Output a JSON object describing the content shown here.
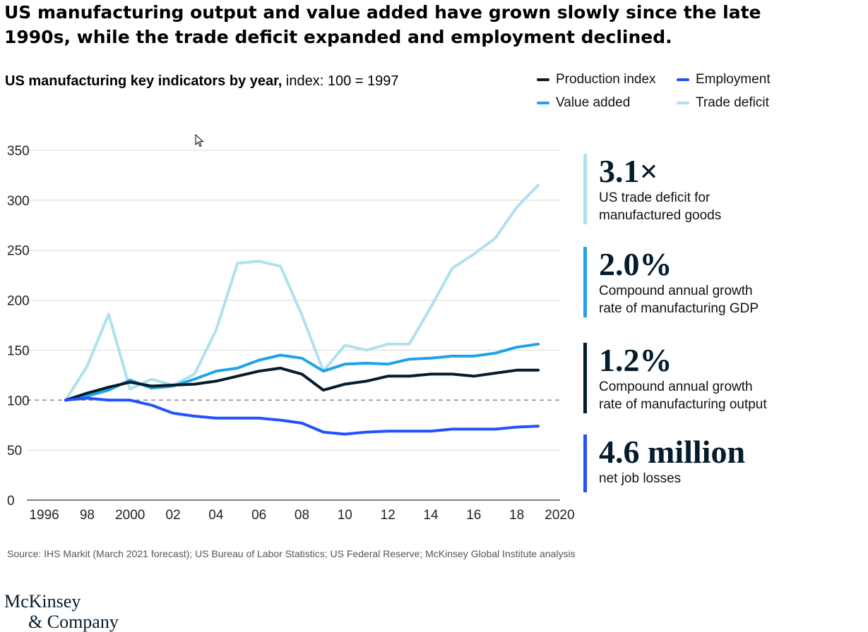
{
  "headline": "US manufacturing output and value added have grown slowly since the late 1990s, while the trade deficit expanded and employment declined.",
  "subtitle": {
    "bold": "US manufacturing key indicators by year,",
    "normal": " index: 100 = 1997"
  },
  "source": "Source: IHS Markit (March 2021 forecast); US Bureau of Labor Statistics; US Federal Reserve; McKinsey Global Institute analysis",
  "logo": {
    "line1": "McKinsey",
    "line2": "& Company"
  },
  "stats": [
    {
      "value": "3.1×",
      "line1": "US trade deficit for",
      "line2": "manufactured goods",
      "color": "#aee2ec"
    },
    {
      "value": "2.0%",
      "line1": "Compound annual growth",
      "line2": "rate of manufacturing GDP",
      "color": "#1fa3e8"
    },
    {
      "value": "1.2%",
      "line1": "Compound annual growth",
      "line2": "rate of manufacturing output",
      "color": "#051c2c"
    },
    {
      "value": "4.6 million",
      "line1": "net job losses",
      "line2": "",
      "color": "#2251ff"
    }
  ],
  "chart_data": {
    "type": "line",
    "ylim": [
      0,
      350
    ],
    "xlim": [
      1996,
      2020
    ],
    "yticks": [
      0,
      50,
      100,
      150,
      200,
      250,
      300,
      350
    ],
    "xtick_values": [
      1996,
      1998,
      2000,
      2002,
      2004,
      2006,
      2008,
      2010,
      2012,
      2014,
      2016,
      2018,
      2020
    ],
    "xtick_labels": [
      "1996",
      "98",
      "2000",
      "02",
      "04",
      "06",
      "08",
      "10",
      "12",
      "14",
      "16",
      "18",
      "2020"
    ],
    "reference_line": 100,
    "grid": true,
    "legend_position": "top-right",
    "x": [
      1997,
      1998,
      1999,
      2000,
      2001,
      2002,
      2003,
      2004,
      2005,
      2006,
      2007,
      2008,
      2009,
      2010,
      2011,
      2012,
      2013,
      2014,
      2015,
      2016,
      2017,
      2018,
      2019
    ],
    "series": [
      {
        "name": "Trade deficit",
        "color": "#aee2ec",
        "values": [
          100,
          134,
          186,
          111,
          121,
          115,
          126,
          170,
          237,
          239,
          234,
          185,
          129,
          155,
          150,
          156,
          156,
          193,
          232,
          246,
          262,
          293,
          315
        ]
      },
      {
        "name": "Value added",
        "color": "#1fa3e8",
        "values": [
          100,
          104,
          110,
          120,
          112,
          114,
          121,
          129,
          132,
          140,
          145,
          142,
          129,
          136,
          137,
          136,
          141,
          142,
          144,
          144,
          147,
          153,
          156
        ]
      },
      {
        "name": "Production index",
        "color": "#051c2c",
        "values": [
          100,
          107,
          113,
          118,
          114,
          115,
          116,
          119,
          124,
          129,
          132,
          126,
          110,
          116,
          119,
          124,
          124,
          126,
          126,
          124,
          127,
          130,
          130
        ]
      },
      {
        "name": "Employment",
        "color": "#2251ff",
        "values": [
          100,
          102,
          100,
          100,
          95,
          87,
          84,
          82,
          82,
          82,
          80,
          77,
          68,
          66,
          68,
          69,
          69,
          69,
          71,
          71,
          71,
          73,
          74
        ]
      }
    ]
  }
}
